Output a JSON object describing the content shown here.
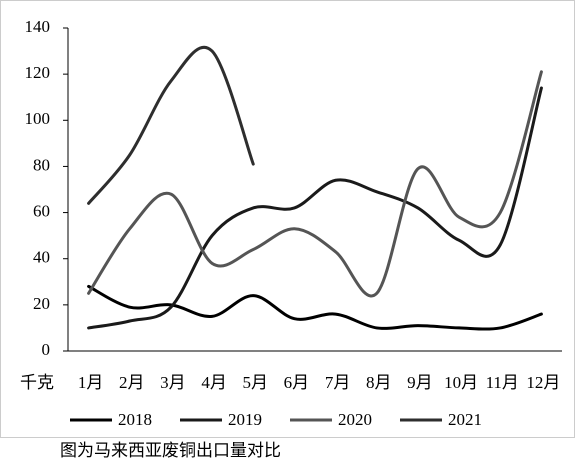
{
  "chart_data": {
    "type": "line",
    "y_label": "千克",
    "caption": "图为马来西亚废铜出口量对比",
    "categories": [
      "1月",
      "2月",
      "3月",
      "4月",
      "5月",
      "6月",
      "7月",
      "8月",
      "9月",
      "10月",
      "11月",
      "12月"
    ],
    "series": [
      {
        "name": "2018",
        "color": "#000000",
        "values": [
          28,
          19,
          20,
          15,
          24,
          14,
          16,
          10,
          11,
          10,
          10,
          16
        ]
      },
      {
        "name": "2019",
        "color": "#1a1a1a",
        "values": [
          10,
          13,
          19,
          50,
          62,
          62,
          74,
          69,
          62,
          48,
          46,
          114
        ]
      },
      {
        "name": "2020",
        "color": "#555555",
        "values": [
          25,
          53,
          68,
          38,
          44,
          53,
          43,
          25,
          79,
          58,
          60,
          121
        ]
      },
      {
        "name": "2021",
        "color": "#2e2e2e",
        "values": [
          64,
          85,
          117,
          130,
          81,
          null,
          null,
          null,
          null,
          null,
          null,
          null
        ]
      }
    ],
    "ylim": [
      0,
      140
    ],
    "yticks": [
      0,
      20,
      40,
      60,
      80,
      100,
      120,
      140
    ],
    "legend": "bottom"
  }
}
